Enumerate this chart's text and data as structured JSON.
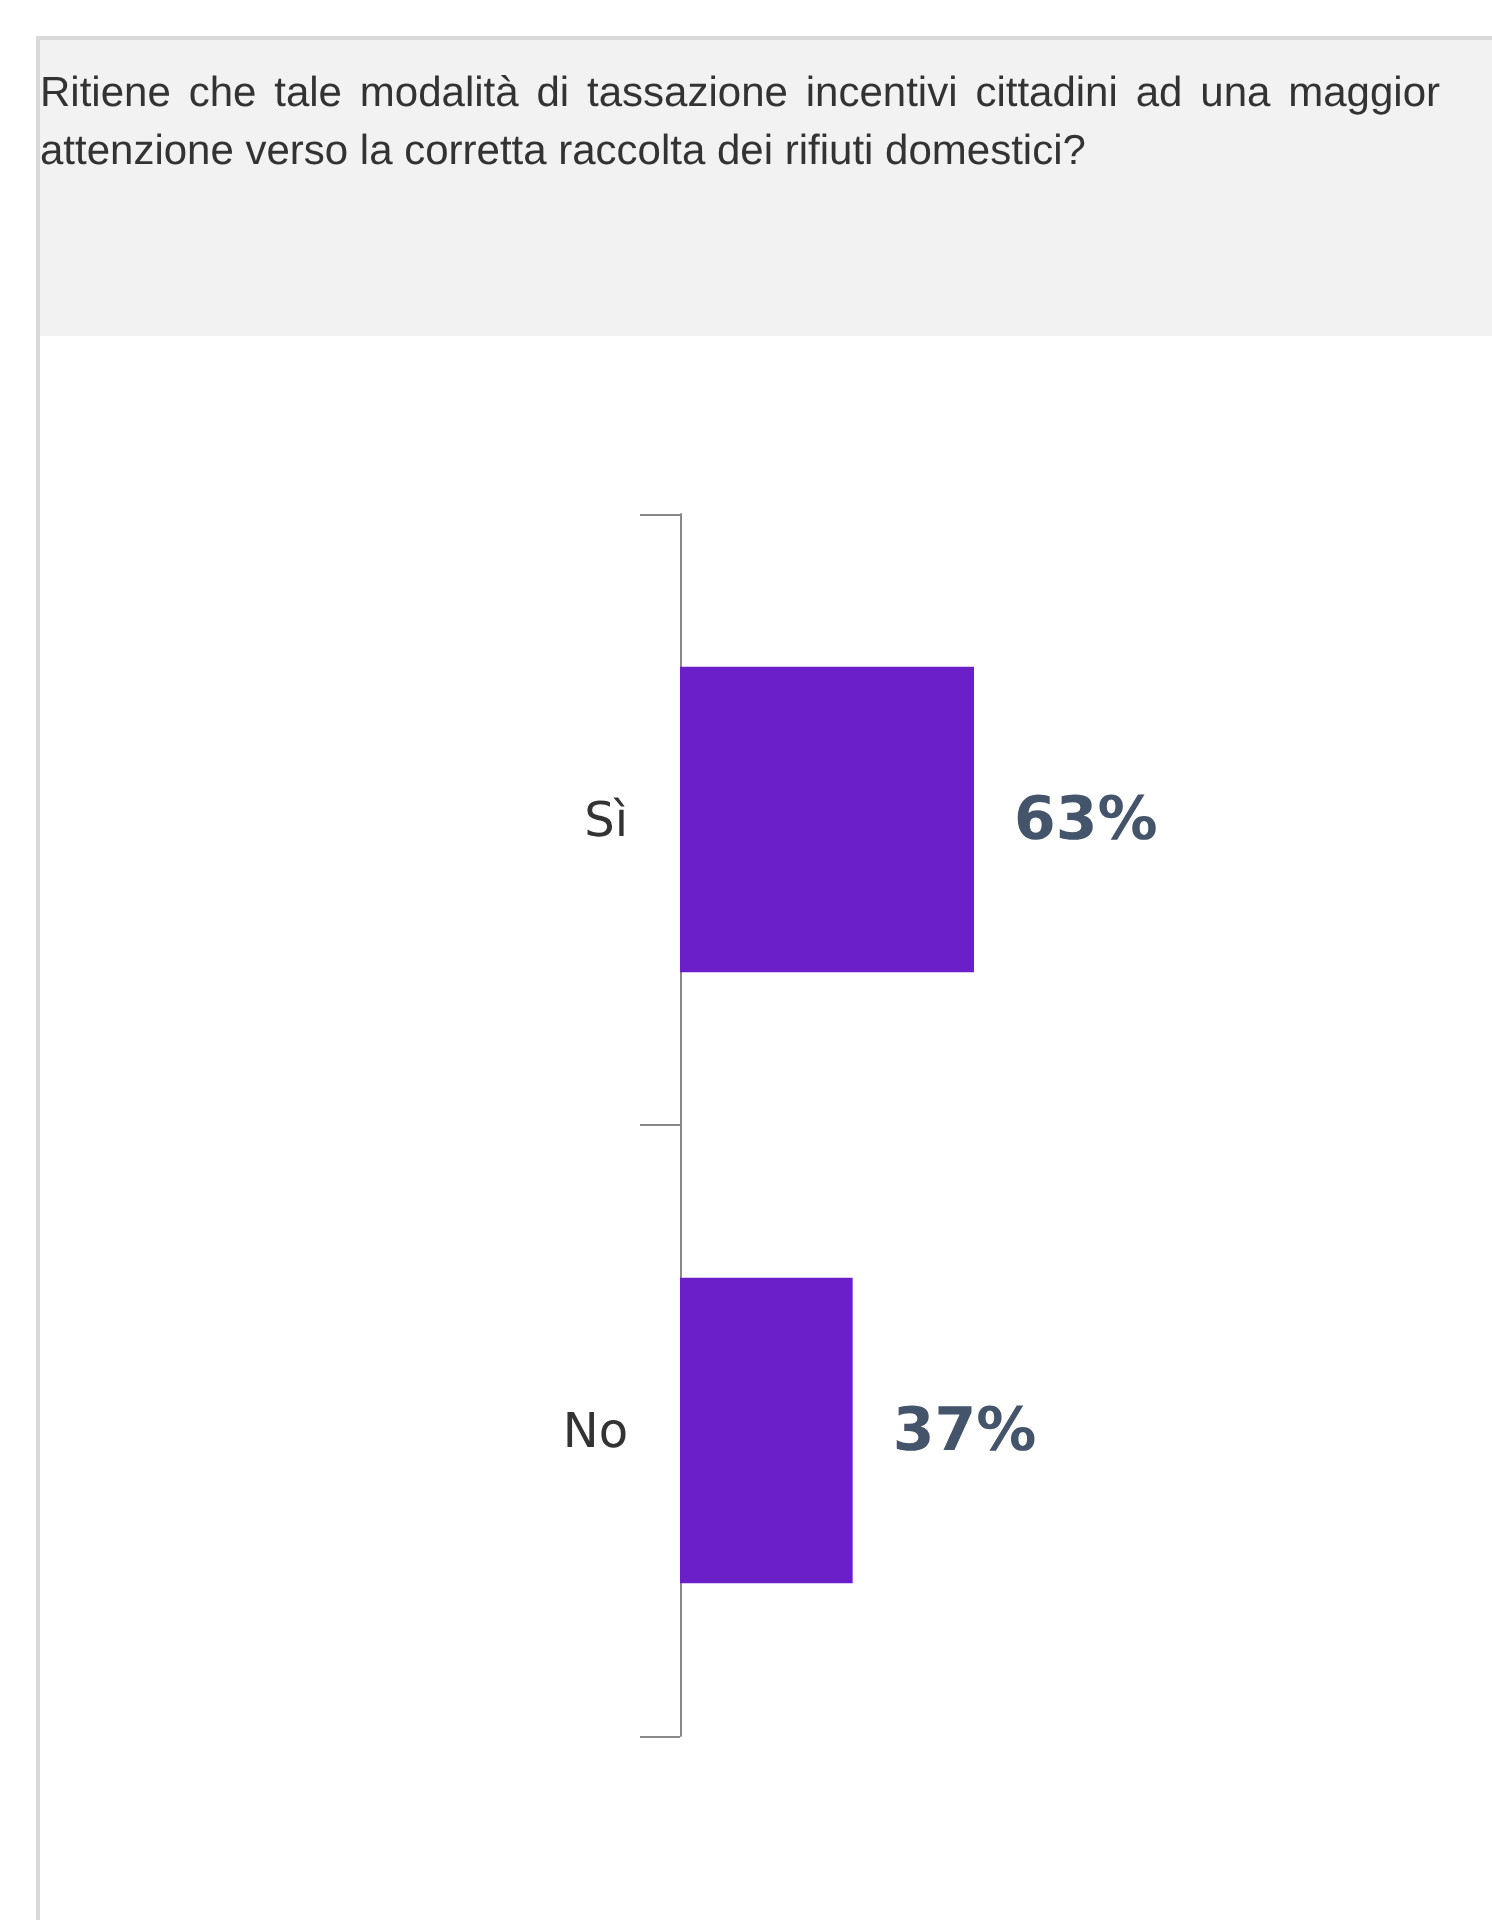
{
  "chart_data": {
    "type": "bar",
    "orientation": "horizontal",
    "title": "Ritiene che tale modalità di tassazione incentivi cittadini ad una maggior attenzione verso la corretta raccolta dei rifiuti domestici?",
    "categories": [
      "Sì",
      "No"
    ],
    "values": [
      63,
      37
    ],
    "value_labels": [
      "63%",
      "37%"
    ],
    "color": "#6a1fc8",
    "tick_labels": "y"
  }
}
